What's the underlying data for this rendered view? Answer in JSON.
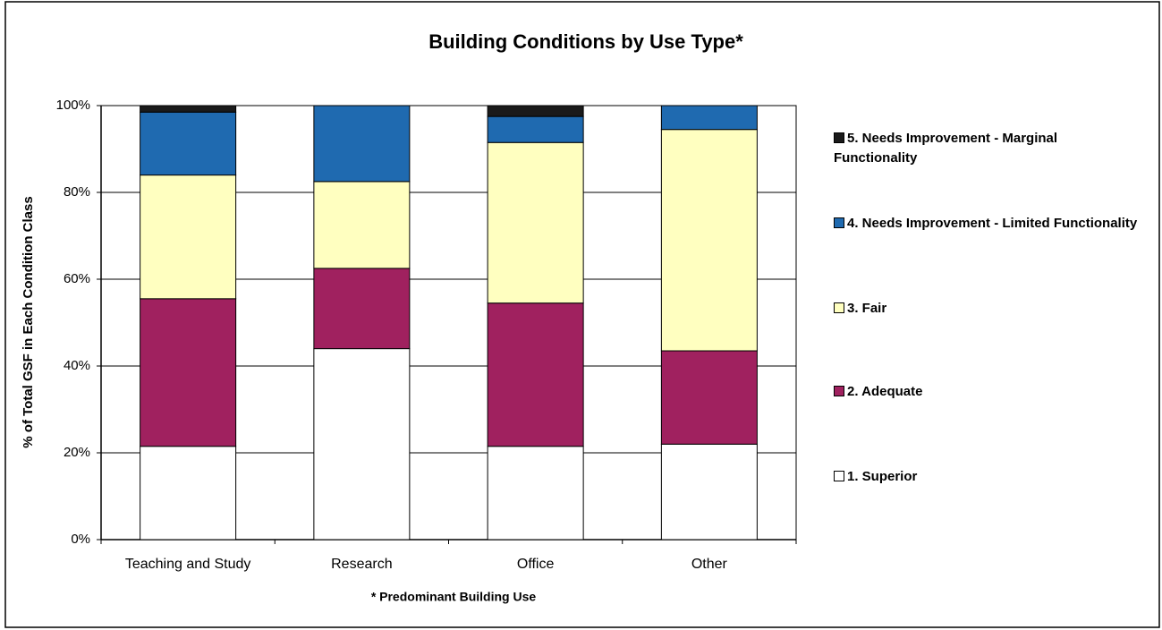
{
  "chart_data": {
    "type": "stacked_bar",
    "title": "Building Conditions by Use Type*",
    "x_label": "* Predominant Building Use",
    "y_label": "% of Total GSF in Each Condition Class",
    "categories": [
      "Teaching and Study",
      "Research",
      "Office",
      "Other"
    ],
    "series": [
      {
        "name": "1. Superior",
        "color": "#ffffff",
        "values": [
          21.5,
          44,
          21.5,
          22
        ]
      },
      {
        "name": "2. Adequate",
        "color": "#a0215f",
        "values": [
          34,
          18.5,
          33,
          21.5
        ]
      },
      {
        "name": "3. Fair",
        "color": "#ffffc0",
        "values": [
          28.5,
          20,
          37,
          51
        ]
      },
      {
        "name": "4. Needs Improvement - Limited Functionality",
        "color": "#1f6ab0",
        "values": [
          14.5,
          17.5,
          6,
          5.5
        ]
      },
      {
        "name": "5. Needs Improvement - Marginal Functionality",
        "color": "#1a1a1a",
        "values": [
          1.5,
          0,
          2.5,
          0
        ]
      }
    ],
    "ylim": [
      0,
      100
    ],
    "yticks": [
      {
        "value": 0,
        "label": "0%"
      },
      {
        "value": 20,
        "label": "20%"
      },
      {
        "value": 40,
        "label": "40%"
      },
      {
        "value": 60,
        "label": "60%"
      },
      {
        "value": 80,
        "label": "80%"
      },
      {
        "value": 100,
        "label": "100%"
      }
    ],
    "grid": true,
    "legend": "right"
  }
}
